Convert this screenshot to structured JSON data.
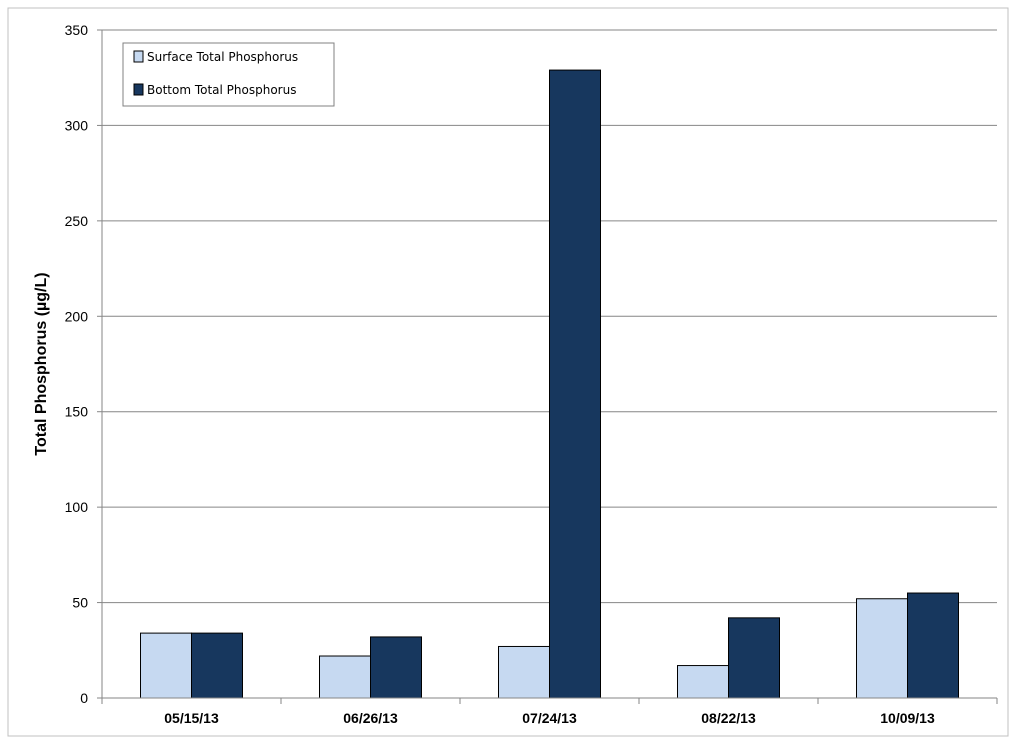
{
  "chart_data": {
    "type": "bar",
    "categories": [
      "05/15/13",
      "06/26/13",
      "07/24/13",
      "08/22/13",
      "10/09/13"
    ],
    "series": [
      {
        "name": "Surface Total Phosphorus",
        "values": [
          34,
          22,
          27,
          17,
          52
        ],
        "color": "#c6d9f1"
      },
      {
        "name": "Bottom Total Phosphorus",
        "values": [
          34,
          32,
          329,
          42,
          55
        ],
        "color": "#17375e"
      }
    ],
    "title": "",
    "xlabel": "",
    "ylabel": "Total Phosphorus (µg/L)",
    "ylim": [
      0,
      350
    ],
    "yticks": [
      0,
      50,
      100,
      150,
      200,
      250,
      300,
      350
    ],
    "grid": true,
    "legend_position": "top-left"
  }
}
